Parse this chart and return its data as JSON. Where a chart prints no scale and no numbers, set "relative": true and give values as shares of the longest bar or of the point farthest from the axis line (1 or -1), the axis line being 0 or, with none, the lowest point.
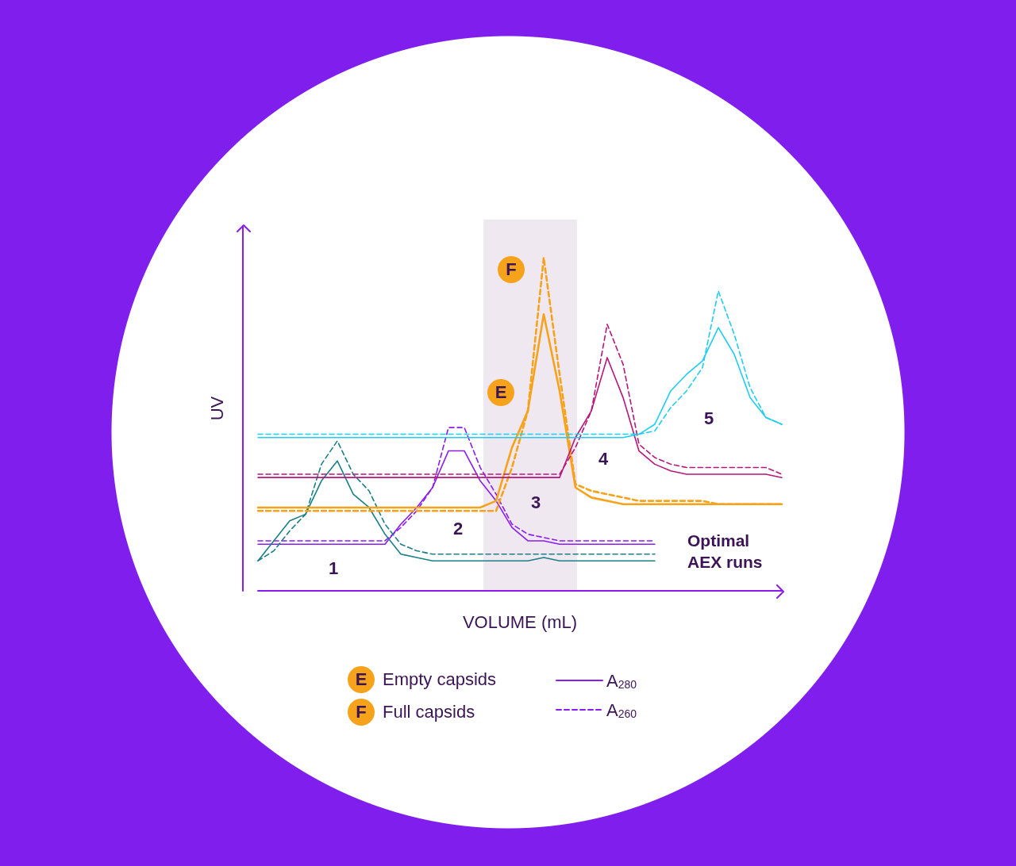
{
  "chart_data": {
    "type": "line",
    "relative": true,
    "xlabel": "VOLUME (mL)",
    "ylabel": "UV",
    "legend": "bottom",
    "categories": [
      null,
      null,
      null,
      null,
      null,
      null,
      null,
      null,
      null,
      null,
      null,
      null,
      null,
      null,
      null,
      null,
      null,
      null,
      null,
      null,
      null,
      null,
      null,
      null,
      null,
      null,
      null,
      null,
      null,
      null,
      null,
      null,
      null,
      null
    ],
    "annotations": [
      "1",
      "2",
      "3",
      "4",
      "5",
      "Optimal AEX runs",
      "E",
      "F",
      "Empty capsids",
      "Full capsids"
    ],
    "series": [
      {
        "name": "A$_{280}$",
        "color": "#8a1cf0",
        "line_style": "solid",
        "values": [
          0.14,
          0.14,
          0.14,
          0.14,
          0.14,
          0.14,
          0.14,
          0.14,
          0.14,
          0.2,
          0.25,
          0.31,
          0.42,
          0.42,
          0.33,
          0.27,
          0.19,
          0.15,
          0.15,
          0.14,
          0.14,
          0.14,
          0.14,
          0.14,
          0.14,
          0.14,
          null,
          null,
          null,
          null,
          null,
          null,
          null,
          null
        ]
      },
      {
        "name": "A$_{260}$",
        "color": "#8a1cf0",
        "line_style": "dashed",
        "values": [
          0.15,
          0.15,
          0.15,
          0.15,
          0.15,
          0.15,
          0.15,
          0.15,
          0.15,
          0.19,
          0.24,
          0.31,
          0.49,
          0.49,
          0.37,
          0.29,
          0.2,
          0.17,
          0.16,
          0.15,
          0.15,
          0.15,
          0.15,
          0.15,
          0.15,
          0.15,
          null,
          null,
          null,
          null,
          null,
          null,
          null,
          null
        ]
      },
      {
        "color": "#1a7f86",
        "line_style": "solid",
        "values": [
          0.09,
          0.15,
          0.21,
          0.23,
          0.33,
          0.39,
          0.29,
          0.25,
          0.17,
          0.11,
          0.1,
          0.09,
          0.09,
          0.09,
          0.09,
          0.09,
          0.09,
          0.09,
          0.1,
          0.09,
          0.09,
          0.09,
          0.09,
          0.09,
          0.09,
          0.09,
          null,
          null,
          null,
          null,
          null,
          null,
          null,
          null
        ]
      },
      {
        "color": "#1a7f86",
        "line_style": "dashed",
        "values": [
          0.09,
          0.12,
          0.18,
          0.23,
          0.38,
          0.45,
          0.35,
          0.3,
          0.2,
          0.14,
          0.12,
          0.11,
          0.11,
          0.11,
          0.11,
          0.11,
          0.11,
          0.11,
          0.11,
          0.11,
          0.11,
          0.11,
          0.11,
          0.11,
          0.11,
          0.11,
          null,
          null,
          null,
          null,
          null,
          null,
          null,
          null
        ]
      },
      {
        "color": "#f7a21b",
        "line_style": "solid",
        "values": [
          0.25,
          0.25,
          0.25,
          0.25,
          0.25,
          0.25,
          0.25,
          0.25,
          0.25,
          0.25,
          0.25,
          0.25,
          0.25,
          0.25,
          0.25,
          0.27,
          0.43,
          0.54,
          0.83,
          0.6,
          0.31,
          0.28,
          0.27,
          0.26,
          0.26,
          0.26,
          0.26,
          0.26,
          0.26,
          0.26,
          0.26,
          0.26,
          0.26,
          0.26
        ]
      },
      {
        "color": "#f7a21b",
        "line_style": "dashed",
        "values": [
          0.24,
          0.24,
          0.24,
          0.24,
          0.24,
          0.24,
          0.24,
          0.24,
          0.24,
          0.24,
          0.24,
          0.24,
          0.24,
          0.24,
          0.24,
          0.24,
          0.37,
          0.54,
          1,
          0.65,
          0.32,
          0.3,
          0.29,
          0.28,
          0.27,
          0.27,
          0.27,
          0.27,
          0.27,
          0.26,
          0.26,
          0.26,
          0.26,
          0.26
        ]
      },
      {
        "color": "#b5177a",
        "line_style": "solid",
        "values": [
          0.34,
          0.34,
          0.34,
          0.34,
          0.34,
          0.34,
          0.34,
          0.34,
          0.34,
          0.34,
          0.34,
          0.34,
          0.34,
          0.34,
          0.34,
          0.34,
          0.34,
          0.34,
          0.34,
          0.34,
          0.46,
          0.54,
          0.7,
          0.58,
          0.42,
          0.38,
          0.36,
          0.35,
          0.35,
          0.35,
          0.35,
          0.35,
          0.35,
          0.34
        ]
      },
      {
        "color": "#b5177a",
        "line_style": "dashed",
        "values": [
          0.35,
          0.35,
          0.35,
          0.35,
          0.35,
          0.35,
          0.35,
          0.35,
          0.35,
          0.35,
          0.35,
          0.35,
          0.35,
          0.35,
          0.35,
          0.35,
          0.35,
          0.35,
          0.35,
          0.35,
          0.43,
          0.54,
          0.8,
          0.68,
          0.44,
          0.4,
          0.38,
          0.37,
          0.37,
          0.37,
          0.37,
          0.37,
          0.37,
          0.35
        ]
      },
      {
        "color": "#1ecdf0",
        "line_style": "solid",
        "values": [
          0.46,
          0.46,
          0.46,
          0.46,
          0.46,
          0.46,
          0.46,
          0.46,
          0.46,
          0.46,
          0.46,
          0.46,
          0.46,
          0.46,
          0.46,
          0.46,
          0.46,
          0.46,
          0.46,
          0.46,
          0.46,
          0.46,
          0.46,
          0.46,
          0.47,
          0.5,
          0.6,
          0.65,
          0.69,
          0.79,
          0.71,
          0.58,
          0.52,
          0.5
        ]
      },
      {
        "color": "#1ecdf0",
        "line_style": "dashed",
        "values": [
          0.47,
          0.47,
          0.47,
          0.47,
          0.47,
          0.47,
          0.47,
          0.47,
          0.47,
          0.47,
          0.47,
          0.47,
          0.47,
          0.47,
          0.47,
          0.47,
          0.47,
          0.47,
          0.47,
          0.47,
          0.47,
          0.47,
          0.47,
          0.47,
          0.47,
          0.48,
          0.55,
          0.6,
          0.67,
          0.9,
          0.77,
          0.61,
          0.52,
          0.5
        ]
      }
    ]
  }
}
